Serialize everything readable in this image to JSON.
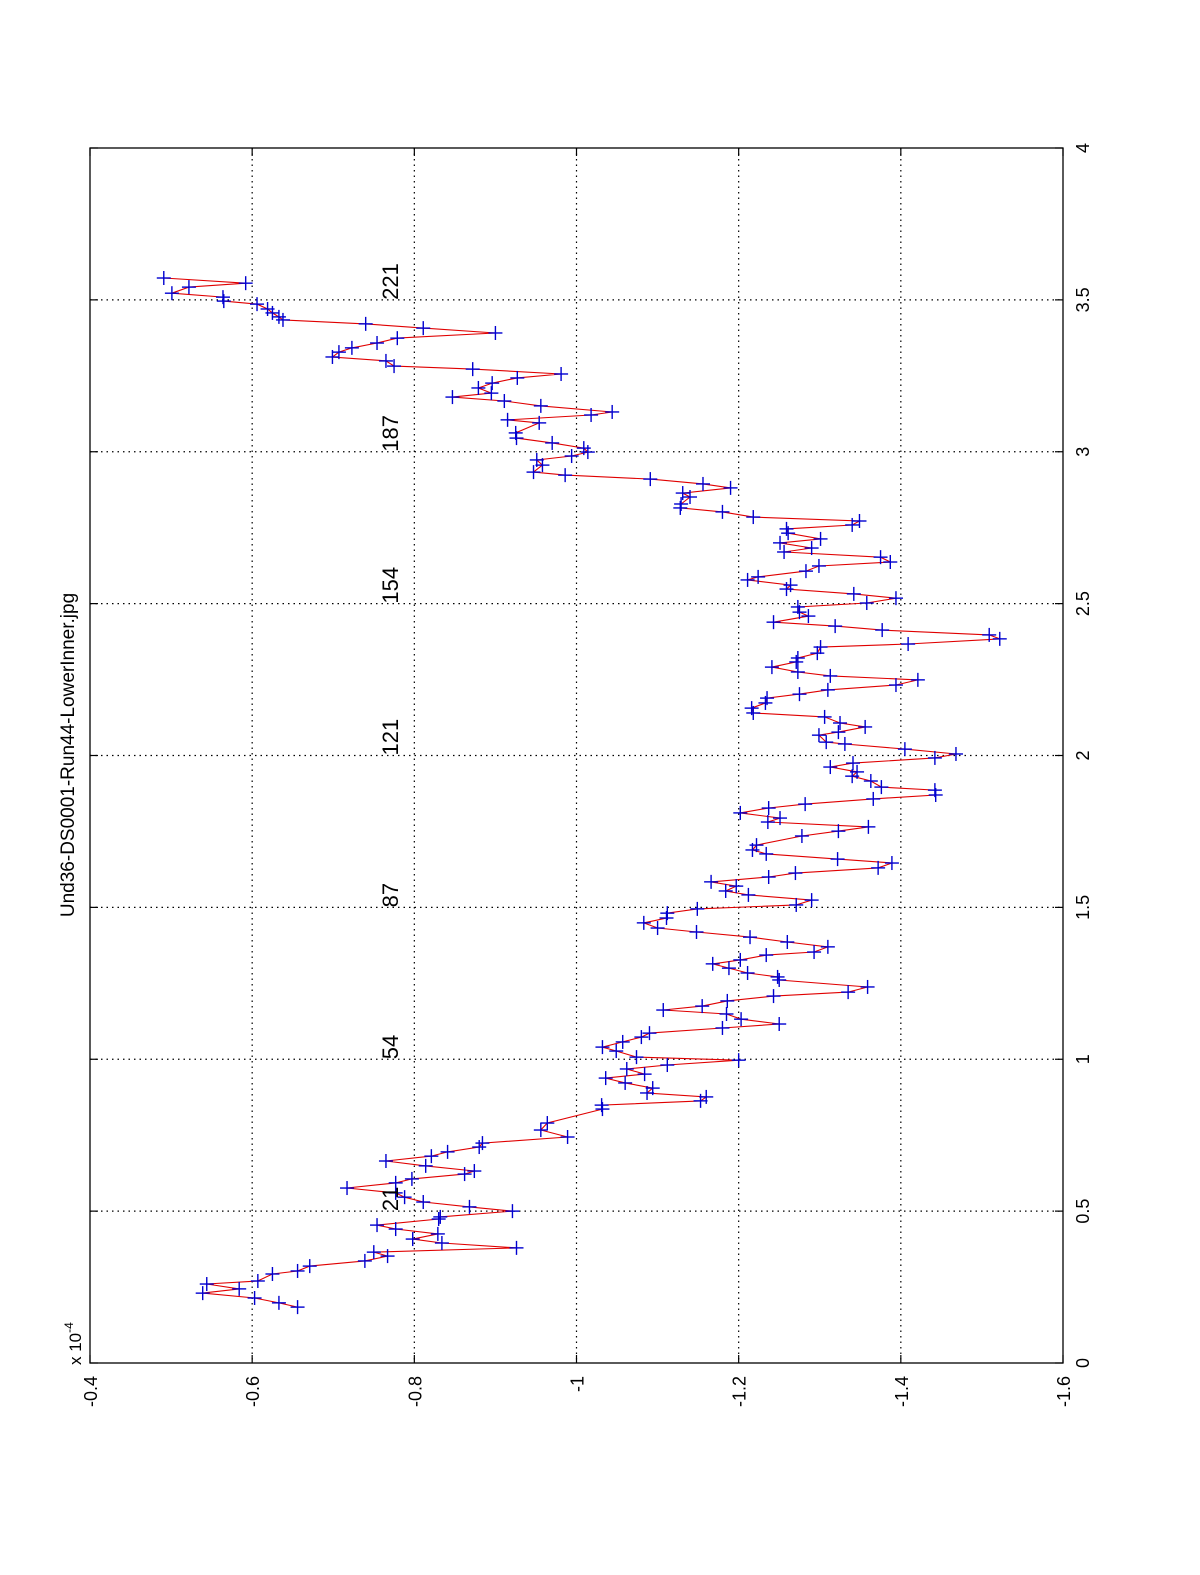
{
  "chart_data": {
    "type": "line",
    "orientation": "rotated 90 degrees counter-clockwise",
    "title": "Und36-DS0001-Run44-LowerInner.jpg",
    "xlabel": "",
    "ylabel": "",
    "y_exponent_label": {
      "base": "x 10",
      "exp": "-4"
    },
    "xlim": [
      0,
      4
    ],
    "ylim": [
      -1.6,
      -0.4
    ],
    "x_ticks": [
      "0",
      "0.5",
      "1",
      "1.5",
      "2",
      "2.5",
      "3",
      "3.5",
      "4"
    ],
    "y_ticks": [
      "-0.4",
      "-0.6",
      "-0.8",
      "-1",
      "-1.2",
      "-1.4",
      "-1.6"
    ],
    "grid": true,
    "line_color": "#e00000",
    "marker": "+",
    "marker_color": "#0000d0",
    "annotations": [
      {
        "text": "21",
        "x": 0.5,
        "y": -0.78
      },
      {
        "text": "54",
        "x": 1.0,
        "y": -0.78
      },
      {
        "text": "87",
        "x": 1.5,
        "y": -0.78
      },
      {
        "text": "121",
        "x": 2.0,
        "y": -0.78
      },
      {
        "text": "154",
        "x": 2.5,
        "y": -0.78
      },
      {
        "text": "187",
        "x": 3.0,
        "y": -0.78
      },
      {
        "text": "221",
        "x": 3.5,
        "y": -0.78
      }
    ],
    "series": [
      {
        "x": [
          0.184,
          0.198,
          0.214,
          0.23,
          0.244,
          0.26,
          0.27,
          0.293,
          0.303,
          0.319,
          0.336,
          0.352,
          0.365,
          0.379,
          0.395,
          0.408,
          0.425,
          0.441,
          0.454,
          0.474,
          0.481,
          0.5,
          0.514,
          0.53,
          0.546,
          0.56,
          0.576,
          0.593,
          0.606,
          0.622,
          0.632,
          0.649,
          0.665,
          0.681,
          0.695,
          0.711,
          0.724,
          0.744,
          0.767,
          0.79,
          0.836,
          0.849,
          0.863,
          0.876,
          0.889,
          0.905,
          0.922,
          0.938,
          0.951,
          0.968,
          0.981,
          0.997,
          1.007,
          1.027,
          1.04,
          1.057,
          1.073,
          1.086,
          1.103,
          1.116,
          1.132,
          1.149,
          1.162,
          1.175,
          1.192,
          1.208,
          1.221,
          1.238,
          1.261,
          1.271,
          1.284,
          1.3,
          1.314,
          1.327,
          1.343,
          1.353,
          1.37,
          1.386,
          1.402,
          1.419,
          1.432,
          1.449,
          1.465,
          1.481,
          1.495,
          1.508,
          1.524,
          1.541,
          1.554,
          1.57,
          1.584,
          1.6,
          1.613,
          1.63,
          1.646,
          1.659,
          1.676,
          1.689,
          1.705,
          1.735,
          1.751,
          1.765,
          1.781,
          1.794,
          1.811,
          1.827,
          1.84,
          1.857,
          1.87,
          1.886,
          1.896,
          1.916,
          1.932,
          1.946,
          1.962,
          1.975,
          1.992,
          2.005,
          2.021,
          2.038,
          2.044,
          2.067,
          2.077,
          2.094,
          2.107,
          2.127,
          2.14,
          2.156,
          2.173,
          2.189,
          2.202,
          2.216,
          2.232,
          2.249,
          2.262,
          2.275,
          2.291,
          2.308,
          2.321,
          2.337,
          2.357,
          2.367,
          2.384,
          2.397,
          2.413,
          2.426,
          2.439,
          2.459,
          2.472,
          2.489,
          2.502,
          2.518,
          2.532,
          2.548,
          2.561,
          2.578,
          2.588,
          2.607,
          2.624,
          2.637,
          2.653,
          2.67,
          2.683,
          2.7,
          2.713,
          2.732,
          2.746,
          2.759,
          2.772,
          2.785,
          2.802,
          2.815,
          2.828,
          2.851,
          2.864,
          2.881,
          2.894,
          2.91,
          2.923,
          2.933,
          2.956,
          2.973,
          2.986,
          2.999,
          3.012,
          3.029,
          3.045,
          3.062,
          3.095,
          3.105,
          3.121,
          3.131,
          3.151,
          3.167,
          3.18,
          3.193,
          3.21,
          3.226,
          3.243,
          3.256,
          3.272,
          3.282,
          3.299,
          3.312,
          3.328,
          3.342,
          3.358,
          3.374,
          3.391,
          3.407,
          3.421,
          3.434,
          3.444,
          3.457,
          3.47,
          3.486,
          3.496,
          3.509,
          3.522,
          3.542,
          3.555,
          3.572
        ],
        "y": [
          -0.656,
          -0.633,
          -0.603,
          -0.539,
          -0.584,
          -0.544,
          -0.607,
          -0.625,
          -0.656,
          -0.671,
          -0.739,
          -0.767,
          -0.75,
          -0.926,
          -0.834,
          -0.798,
          -0.829,
          -0.777,
          -0.754,
          -0.83,
          -0.832,
          -0.921,
          -0.868,
          -0.811,
          -0.788,
          -0.777,
          -0.717,
          -0.777,
          -0.797,
          -0.862,
          -0.874,
          -0.814,
          -0.765,
          -0.821,
          -0.841,
          -0.88,
          -0.884,
          -0.989,
          -0.956,
          -0.964,
          -1.032,
          -1.031,
          -1.153,
          -1.16,
          -1.087,
          -1.094,
          -1.06,
          -1.036,
          -1.084,
          -1.062,
          -1.112,
          -1.2,
          -1.074,
          -1.049,
          -1.032,
          -1.057,
          -1.08,
          -1.09,
          -1.18,
          -1.25,
          -1.203,
          -1.185,
          -1.107,
          -1.155,
          -1.186,
          -1.243,
          -1.335,
          -1.359,
          -1.25,
          -1.248,
          -1.211,
          -1.188,
          -1.168,
          -1.202,
          -1.234,
          -1.293,
          -1.31,
          -1.26,
          -1.214,
          -1.148,
          -1.1,
          -1.083,
          -1.111,
          -1.112,
          -1.149,
          -1.271,
          -1.29,
          -1.212,
          -1.184,
          -1.197,
          -1.166,
          -1.237,
          -1.27,
          -1.372,
          -1.389,
          -1.322,
          -1.234,
          -1.217,
          -1.222,
          -1.278,
          -1.323,
          -1.36,
          -1.236,
          -1.251,
          -1.202,
          -1.237,
          -1.282,
          -1.366,
          -1.443,
          -1.442,
          -1.376,
          -1.363,
          -1.34,
          -1.346,
          -1.313,
          -1.341,
          -1.442,
          -1.468,
          -1.405,
          -1.331,
          -1.308,
          -1.299,
          -1.323,
          -1.356,
          -1.325,
          -1.306,
          -1.218,
          -1.216,
          -1.233,
          -1.235,
          -1.275,
          -1.31,
          -1.394,
          -1.421,
          -1.313,
          -1.273,
          -1.241,
          -1.271,
          -1.273,
          -1.297,
          -1.301,
          -1.409,
          -1.522,
          -1.509,
          -1.377,
          -1.319,
          -1.243,
          -1.286,
          -1.275,
          -1.273,
          -1.358,
          -1.394,
          -1.342,
          -1.259,
          -1.264,
          -1.211,
          -1.224,
          -1.283,
          -1.299,
          -1.387,
          -1.375,
          -1.256,
          -1.29,
          -1.251,
          -1.301,
          -1.261,
          -1.259,
          -1.34,
          -1.349,
          -1.218,
          -1.18,
          -1.128,
          -1.129,
          -1.14,
          -1.131,
          -1.19,
          -1.156,
          -1.091,
          -0.986,
          -0.947,
          -0.958,
          -0.951,
          -0.994,
          -1.014,
          -1.009,
          -0.97,
          -0.926,
          -0.925,
          -0.954,
          -0.915,
          -1.018,
          -1.044,
          -0.956,
          -0.911,
          -0.847,
          -0.895,
          -0.879,
          -0.896,
          -0.927,
          -0.981,
          -0.872,
          -0.775,
          -0.765,
          -0.699,
          -0.707,
          -0.723,
          -0.754,
          -0.779,
          -0.9,
          -0.811,
          -0.74,
          -0.638,
          -0.633,
          -0.625,
          -0.619,
          -0.606,
          -0.565,
          -0.564,
          -0.501,
          -0.522,
          -0.592,
          -0.491
        ]
      }
    ]
  }
}
